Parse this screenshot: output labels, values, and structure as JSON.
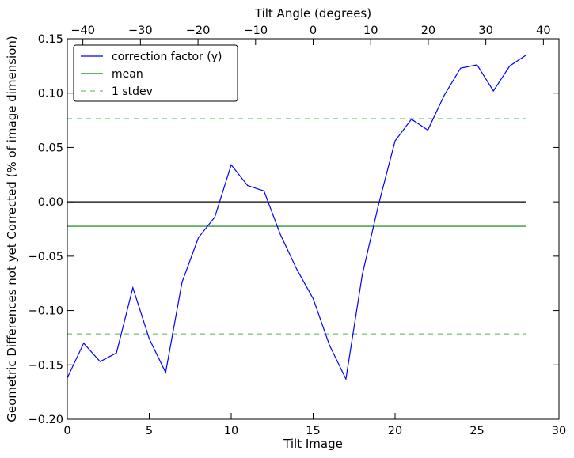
{
  "chart_data": {
    "type": "line",
    "title": "",
    "xlabel": "Tilt Image",
    "ylabel": "Geometric Differences not yet Corrected (% of image dimension)",
    "top_xlabel": "Tilt Angle (degrees)",
    "xlim": [
      0,
      30
    ],
    "ylim": [
      -0.2,
      0.15
    ],
    "top_xlim": [
      -42.7,
      42.7
    ],
    "x_ticks": [
      0,
      5,
      10,
      15,
      20,
      25,
      30
    ],
    "x_tick_labels": [
      "0",
      "5",
      "10",
      "15",
      "20",
      "25",
      "30"
    ],
    "y_ticks": [
      -0.2,
      -0.15,
      -0.1,
      -0.05,
      0.0,
      0.05,
      0.1,
      0.15
    ],
    "y_tick_labels": [
      "−0.20",
      "−0.15",
      "−0.10",
      "−0.05",
      "0.00",
      "0.05",
      "0.10",
      "0.15"
    ],
    "top_ticks": [
      -40,
      -30,
      -20,
      -10,
      0,
      10,
      20,
      30,
      40
    ],
    "top_tick_labels": [
      "−40",
      "−30",
      "−20",
      "−10",
      "0",
      "10",
      "20",
      "30",
      "40"
    ],
    "grid": false,
    "legend_position": "upper-left",
    "series": [
      {
        "name": "correction factor (y)",
        "color": "#0000ff",
        "style": "solid",
        "x": [
          0,
          1,
          2,
          3,
          4,
          5,
          6,
          7,
          8,
          9,
          10,
          11,
          12,
          13,
          14,
          15,
          16,
          17,
          18,
          19,
          20,
          21,
          22,
          23,
          24,
          25,
          26,
          27,
          28
        ],
        "y": [
          -0.162,
          -0.13,
          -0.147,
          -0.139,
          -0.079,
          -0.126,
          -0.157,
          -0.074,
          -0.033,
          -0.014,
          0.034,
          0.015,
          0.01,
          -0.03,
          -0.062,
          -0.089,
          -0.132,
          -0.163,
          -0.067,
          -0.002,
          0.056,
          0.076,
          0.066,
          0.098,
          0.123,
          0.126,
          0.102,
          0.125,
          0.135
        ]
      },
      {
        "name": "mean",
        "color": "#008000",
        "style": "solid",
        "x": [
          0,
          28
        ],
        "y": [
          -0.0225,
          -0.0225
        ]
      },
      {
        "name": "1 stdev",
        "color": "#4caf50",
        "style": "dashed",
        "x": [
          0,
          28
        ],
        "y": [
          0.0765,
          0.0765
        ]
      },
      {
        "name": "",
        "color": "#4caf50",
        "style": "dashed",
        "x": [
          0,
          28
        ],
        "y": [
          -0.1215,
          -0.1215
        ]
      },
      {
        "name": "",
        "color": "#000000",
        "style": "solid",
        "x": [
          0,
          28
        ],
        "y": [
          0.0,
          0.0
        ]
      }
    ],
    "legend": [
      {
        "label": "correction factor (y)",
        "color": "#0000ff",
        "style": "solid"
      },
      {
        "label": "mean",
        "color": "#008000",
        "style": "solid"
      },
      {
        "label": "1 stdev",
        "color": "#4caf50",
        "style": "dashed"
      }
    ]
  }
}
